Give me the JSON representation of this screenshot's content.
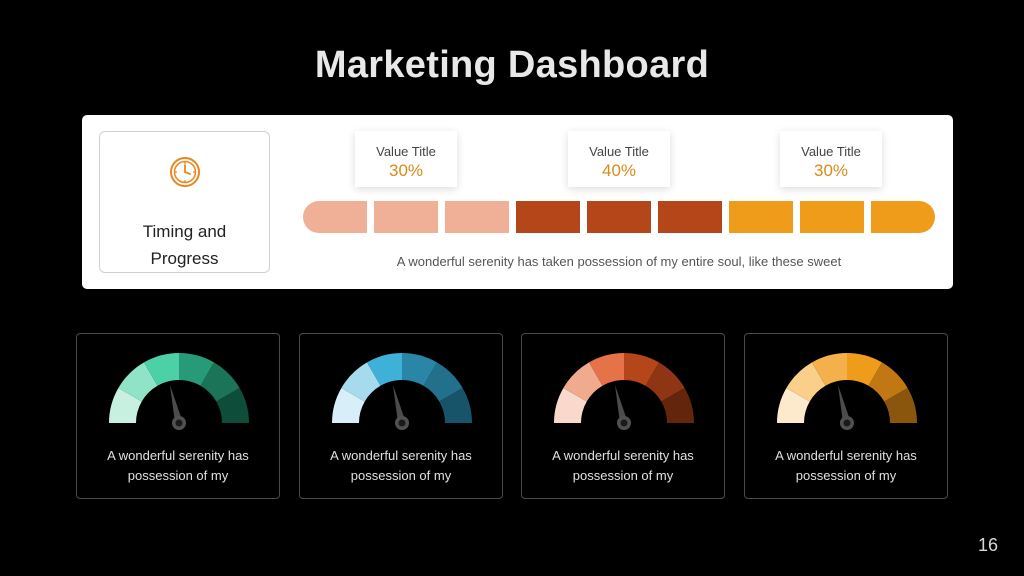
{
  "title": "Marketing Dashboard",
  "panel": {
    "side_card": {
      "line1": "Timing and",
      "line2": "Progress",
      "icon": "clock-icon"
    },
    "callouts": [
      {
        "label": "Value Title",
        "value": "30%"
      },
      {
        "label": "Value Title",
        "value": "40%"
      },
      {
        "label": "Value Title",
        "value": "30%"
      }
    ],
    "segments": [
      {
        "group": 0,
        "color": "#efb097"
      },
      {
        "group": 0,
        "color": "#efb097"
      },
      {
        "group": 0,
        "color": "#efb097"
      },
      {
        "group": 1,
        "color": "#b5461a"
      },
      {
        "group": 1,
        "color": "#b5461a"
      },
      {
        "group": 1,
        "color": "#b5461a"
      },
      {
        "group": 2,
        "color": "#ef9c1b"
      },
      {
        "group": 2,
        "color": "#ef9c1b"
      },
      {
        "group": 2,
        "color": "#ef9c1b"
      }
    ],
    "caption": "A wonderful serenity has taken possession of my entire soul, like these sweet"
  },
  "gauges": [
    {
      "text1": "A wonderful serenity has",
      "text2": "possession of my",
      "colors": [
        "#c8f0e0",
        "#8fe3c6",
        "#4ed0a6",
        "#279a78",
        "#1b7358",
        "#0e4d3a"
      ]
    },
    {
      "text1": "A wonderful serenity has",
      "text2": "possession of my",
      "colors": [
        "#d8eef8",
        "#a6dbee",
        "#3fb1d8",
        "#2a86a7",
        "#23708c",
        "#17546a"
      ]
    },
    {
      "text1": "A wonderful serenity has",
      "text2": "possession of my",
      "colors": [
        "#f9d9cc",
        "#f0aa8e",
        "#e57347",
        "#b5461a",
        "#8e3513",
        "#64250d"
      ]
    },
    {
      "text1": "A wonderful serenity has",
      "text2": "possession of my",
      "colors": [
        "#fde9cc",
        "#f9cf8a",
        "#f4b04a",
        "#ef9c1b",
        "#c17814",
        "#8a560e"
      ]
    }
  ],
  "page_number": "16"
}
